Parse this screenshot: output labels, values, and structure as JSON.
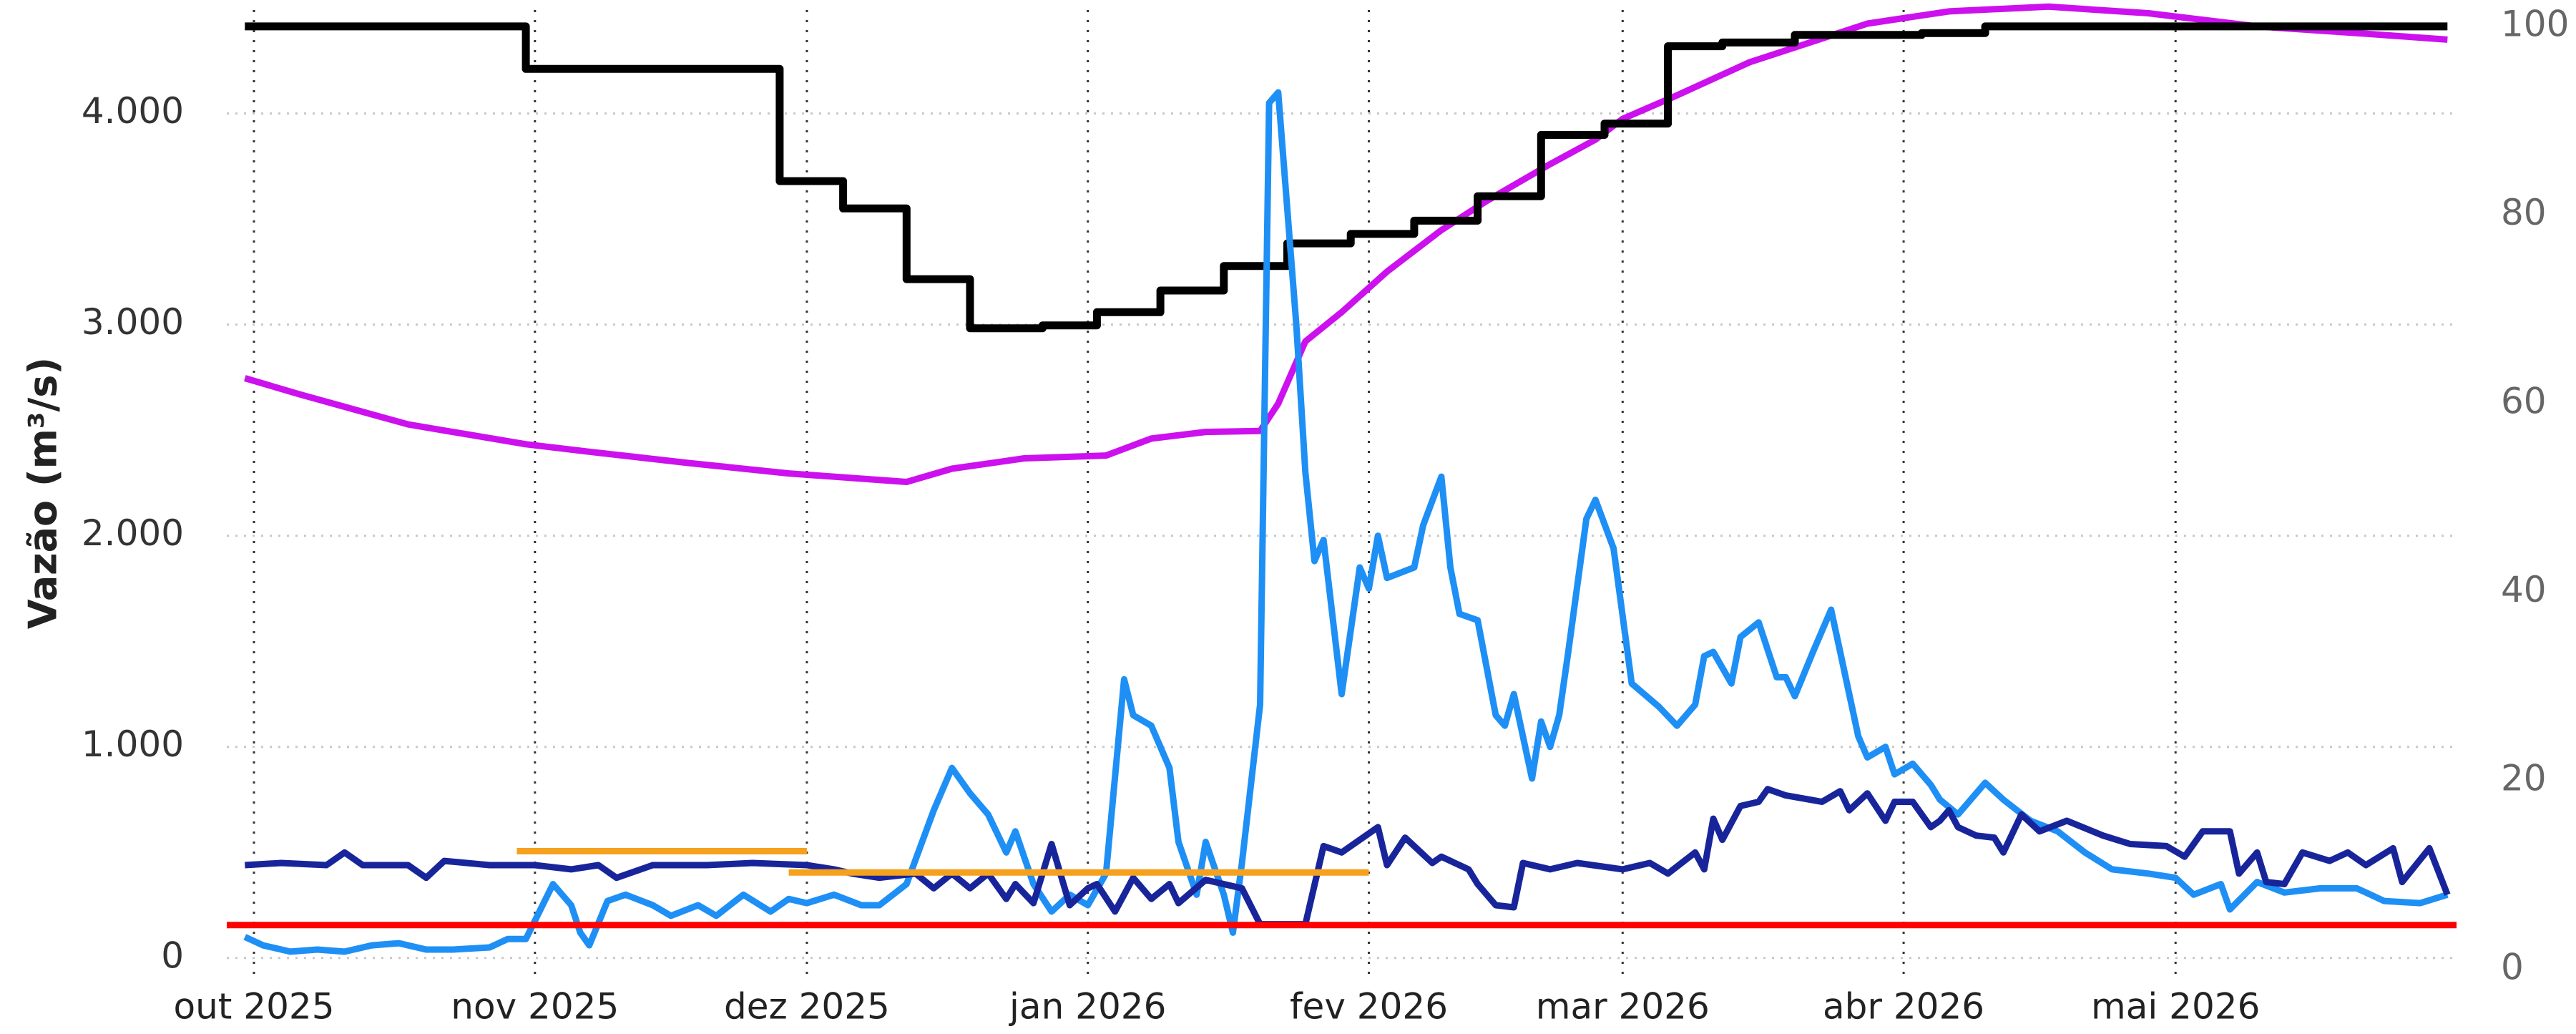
{
  "chart_data": {
    "type": "line",
    "y_label": "Vazão (m³/s)",
    "xlim": [
      "2025-09-28",
      "2026-06-01"
    ],
    "xticks": [
      {
        "value": "2025-10-01",
        "label": "out 2025"
      },
      {
        "value": "2025-11-01",
        "label": "nov 2025"
      },
      {
        "value": "2025-12-01",
        "label": "dez 2025"
      },
      {
        "value": "2026-01-01",
        "label": "jan 2026"
      },
      {
        "value": "2026-02-01",
        "label": "fev 2026"
      },
      {
        "value": "2026-03-01",
        "label": "mar 2026"
      },
      {
        "value": "2026-04-01",
        "label": "abr 2026"
      },
      {
        "value": "2026-05-01",
        "label": "mai 2026"
      }
    ],
    "ylim": [
      -99,
      4524
    ],
    "yticks": [
      0,
      {
        "value": 1000,
        "label": "1.000"
      },
      {
        "value": 2000,
        "label": "2.000"
      },
      {
        "value": 3000,
        "label": "3.000"
      },
      {
        "value": 4000,
        "label": "4.000"
      }
    ],
    "y2lim": [
      -1,
      102.5
    ],
    "y2ticks": [
      0,
      20,
      40,
      60,
      80,
      100
    ],
    "grid": true,
    "series": [
      {
        "color": "#cc11ee",
        "axis": "y2",
        "x": [
          "2025-09-30",
          "2025-10-06",
          "2025-10-18",
          "2025-10-31",
          "2025-11-07",
          "2025-11-18",
          "2025-11-29",
          "2025-12-12",
          "2025-12-17",
          "2025-12-25",
          "2026-01-03",
          "2026-01-08",
          "2026-01-14",
          "2026-01-20",
          "2026-01-22",
          "2026-01-25",
          "2026-01-29",
          "2026-02-03",
          "2026-02-09",
          "2026-02-14",
          "2026-02-21",
          "2026-02-26",
          "2026-03-01",
          "2026-03-07",
          "2026-03-15",
          "2026-03-22",
          "2026-03-28",
          "2026-04-06",
          "2026-04-17",
          "2026-04-28",
          "2026-05-10",
          "2026-05-21",
          "2026-05-31"
        ],
        "values": [
          62.7,
          61,
          57.8,
          55.7,
          54.9,
          53.7,
          52.6,
          51.7,
          53.1,
          54.2,
          54.5,
          56.3,
          57,
          57.1,
          60,
          66.6,
          69.7,
          74,
          78.4,
          81.5,
          85.4,
          88,
          90.2,
          92.7,
          96.2,
          98.4,
          100.3,
          101.6,
          102.1,
          101.4,
          100,
          99.3,
          98.6
        ]
      },
      {
        "color": "#000000",
        "axis": "y2",
        "x": [
          "2025-09-30",
          "2025-10-31",
          "2025-10-31",
          "2025-11-28",
          "2025-11-28",
          "2025-12-05",
          "2025-12-05",
          "2025-12-12",
          "2025-12-12",
          "2025-12-19",
          "2025-12-19",
          "2025-12-27",
          "2025-12-27",
          "2026-01-02",
          "2026-01-02",
          "2026-01-09",
          "2026-01-09",
          "2026-01-16",
          "2026-01-16",
          "2026-01-23",
          "2026-01-23",
          "2026-01-30",
          "2026-01-30",
          "2026-02-06",
          "2026-02-06",
          "2026-02-13",
          "2026-02-13",
          "2026-02-20",
          "2026-02-20",
          "2026-02-27",
          "2026-02-27",
          "2026-03-06",
          "2026-03-06",
          "2026-03-12",
          "2026-03-12",
          "2026-03-20",
          "2026-03-20",
          "2026-04-03",
          "2026-04-03",
          "2026-04-10",
          "2026-04-10",
          "2026-05-31"
        ],
        "values": [
          100,
          100,
          95.5,
          95.5,
          83.6,
          83.6,
          80.7,
          80.7,
          73.2,
          73.2,
          68,
          68,
          68.3,
          68.3,
          69.7,
          69.7,
          72,
          72,
          74.6,
          74.6,
          77,
          77,
          78,
          78,
          79.4,
          79.4,
          82,
          82,
          88.5,
          88.5,
          89.7,
          89.7,
          97.9,
          97.9,
          98.3,
          98.3,
          99.1,
          99.1,
          99.3,
          99.3,
          100,
          100
        ]
      },
      {
        "color": "#1e8ff5",
        "x": [
          "2025-09-30",
          "2025-10-02",
          "2025-10-05",
          "2025-10-08",
          "2025-10-11",
          "2025-10-14",
          "2025-10-17",
          "2025-10-20",
          "2025-10-23",
          "2025-10-27",
          "2025-10-29",
          "2025-10-31",
          "2025-11-03",
          "2025-11-05",
          "2025-11-06",
          "2025-11-07",
          "2025-11-09",
          "2025-11-11",
          "2025-11-14",
          "2025-11-16",
          "2025-11-19",
          "2025-11-21",
          "2025-11-24",
          "2025-11-27",
          "2025-11-29",
          "2025-12-01",
          "2025-12-04",
          "2025-12-07",
          "2025-12-09",
          "2025-12-12",
          "2025-12-15",
          "2025-12-17",
          "2025-12-19",
          "2025-12-21",
          "2025-12-23",
          "2025-12-24",
          "2025-12-26",
          "2025-12-28",
          "2025-12-30",
          "2026-01-01",
          "2026-01-03",
          "2026-01-05",
          "2026-01-06",
          "2026-01-08",
          "2026-01-10",
          "2026-01-11",
          "2026-01-13",
          "2026-01-14",
          "2026-01-16",
          "2026-01-17",
          "2026-01-18",
          "2026-01-20",
          "2026-01-21",
          "2026-01-22",
          "2026-01-24",
          "2026-01-25",
          "2026-01-26",
          "2026-01-27",
          "2026-01-29",
          "2026-01-31",
          "2026-02-01",
          "2026-02-02",
          "2026-02-03",
          "2026-02-06",
          "2026-02-07",
          "2026-02-09",
          "2026-02-10",
          "2026-02-11",
          "2026-02-13",
          "2026-02-15",
          "2026-02-16",
          "2026-02-17",
          "2026-02-19",
          "2026-02-20",
          "2026-02-21",
          "2026-02-22",
          "2026-02-23",
          "2026-02-25",
          "2026-02-26",
          "2026-02-28",
          "2026-03-02",
          "2026-03-05",
          "2026-03-07",
          "2026-03-09",
          "2026-03-10",
          "2026-03-11",
          "2026-03-13",
          "2026-03-14",
          "2026-03-16",
          "2026-03-18",
          "2026-03-19",
          "2026-03-20",
          "2026-03-22",
          "2026-03-24",
          "2026-03-25",
          "2026-03-27",
          "2026-03-28",
          "2026-03-30",
          "2026-03-31",
          "2026-04-02",
          "2026-04-04",
          "2026-04-05",
          "2026-04-07",
          "2026-04-10",
          "2026-04-12",
          "2026-04-15",
          "2026-04-18",
          "2026-04-21",
          "2026-04-24",
          "2026-04-28",
          "2026-05-01",
          "2026-05-03",
          "2026-05-06",
          "2026-05-07",
          "2026-05-10",
          "2026-05-13",
          "2026-05-17",
          "2026-05-21",
          "2026-05-24",
          "2026-05-28",
          "2026-05-31"
        ],
        "values": [
          100,
          60,
          30,
          40,
          30,
          60,
          70,
          40,
          40,
          50,
          90,
          90,
          350,
          250,
          120,
          60,
          270,
          300,
          250,
          200,
          250,
          200,
          300,
          220,
          280,
          260,
          300,
          250,
          250,
          350,
          700,
          900,
          780,
          680,
          500,
          600,
          350,
          220,
          300,
          250,
          400,
          1320,
          1150,
          1100,
          900,
          550,
          300,
          550,
          300,
          120,
          450,
          1200,
          4050,
          4100,
          3000,
          2300,
          1880,
          1980,
          1250,
          1850,
          1750,
          2000,
          1800,
          1850,
          2050,
          2280,
          1850,
          1630,
          1600,
          1150,
          1100,
          1250,
          850,
          1120,
          1000,
          1150,
          1450,
          2080,
          2170,
          1940,
          1300,
          1190,
          1100,
          1200,
          1430,
          1450,
          1300,
          1520,
          1590,
          1330,
          1330,
          1240,
          1450,
          1650,
          1450,
          1050,
          950,
          1000,
          870,
          920,
          820,
          750,
          680,
          830,
          750,
          650,
          600,
          500,
          420,
          400,
          380,
          300,
          350,
          230,
          360,
          310,
          330,
          330,
          270,
          260,
          300
        ]
      },
      {
        "color": "#18259a",
        "x": [
          "2025-09-30",
          "2025-10-04",
          "2025-10-09",
          "2025-10-11",
          "2025-10-13",
          "2025-10-18",
          "2025-10-20",
          "2025-10-22",
          "2025-10-27",
          "2025-11-01",
          "2025-11-05",
          "2025-11-08",
          "2025-11-10",
          "2025-11-14",
          "2025-11-20",
          "2025-11-25",
          "2025-12-01",
          "2025-12-04",
          "2025-12-06",
          "2025-12-09",
          "2025-12-13",
          "2025-12-15",
          "2025-12-17",
          "2025-12-19",
          "2025-12-21",
          "2025-12-23",
          "2025-12-24",
          "2025-12-26",
          "2025-12-28",
          "2025-12-30",
          "2026-01-01",
          "2026-01-02",
          "2026-01-04",
          "2026-01-06",
          "2026-01-08",
          "2026-01-10",
          "2026-01-11",
          "2026-01-14",
          "2026-01-18",
          "2026-01-20",
          "2026-01-25",
          "2026-01-27",
          "2026-01-29",
          "2026-02-02",
          "2026-02-03",
          "2026-02-05",
          "2026-02-08",
          "2026-02-09",
          "2026-02-12",
          "2026-02-13",
          "2026-02-15",
          "2026-02-17",
          "2026-02-18",
          "2026-02-21",
          "2026-02-24",
          "2026-03-01",
          "2026-03-04",
          "2026-03-06",
          "2026-03-09",
          "2026-03-10",
          "2026-03-11",
          "2026-03-12",
          "2026-03-14",
          "2026-03-16",
          "2026-03-17",
          "2026-03-19",
          "2026-03-23",
          "2026-03-25",
          "2026-03-26",
          "2026-03-28",
          "2026-03-30",
          "2026-03-31",
          "2026-04-02",
          "2026-04-04",
          "2026-04-05",
          "2026-04-06",
          "2026-04-07",
          "2026-04-09",
          "2026-04-11",
          "2026-04-12",
          "2026-04-14",
          "2026-04-16",
          "2026-04-19",
          "2026-04-23",
          "2026-04-26",
          "2026-04-30",
          "2026-05-02",
          "2026-05-04",
          "2026-05-07",
          "2026-05-08",
          "2026-05-10",
          "2026-05-11",
          "2026-05-13",
          "2026-05-15",
          "2026-05-18",
          "2026-05-20",
          "2026-05-22",
          "2026-05-25",
          "2026-05-26",
          "2026-05-29",
          "2026-05-31"
        ],
        "values": [
          440,
          450,
          440,
          500,
          440,
          440,
          380,
          460,
          440,
          440,
          420,
          440,
          380,
          440,
          440,
          450,
          440,
          420,
          400,
          380,
          400,
          330,
          400,
          330,
          400,
          280,
          350,
          260,
          540,
          250,
          330,
          350,
          220,
          380,
          280,
          350,
          260,
          370,
          330,
          160,
          160,
          530,
          500,
          620,
          440,
          570,
          450,
          480,
          420,
          350,
          250,
          240,
          450,
          420,
          450,
          420,
          450,
          400,
          500,
          420,
          660,
          560,
          720,
          740,
          800,
          770,
          740,
          790,
          700,
          780,
          650,
          740,
          740,
          620,
          650,
          700,
          620,
          580,
          570,
          500,
          680,
          600,
          650,
          580,
          540,
          530,
          480,
          600,
          600,
          400,
          500,
          360,
          350,
          500,
          460,
          500,
          440,
          520,
          360,
          520,
          300
        ]
      },
      {
        "color": "#f5a11e",
        "x": [
          "2025-10-30",
          "2025-12-01"
        ],
        "values": [
          506,
          506
        ]
      },
      {
        "color": "#f5a11e",
        "x": [
          "2025-11-29",
          "2026-02-01"
        ],
        "values": [
          405,
          405
        ]
      },
      {
        "color": "#ff0000",
        "x": [
          "2025-09-28",
          "2026-06-01"
        ],
        "values": [
          156,
          156
        ]
      }
    ]
  }
}
